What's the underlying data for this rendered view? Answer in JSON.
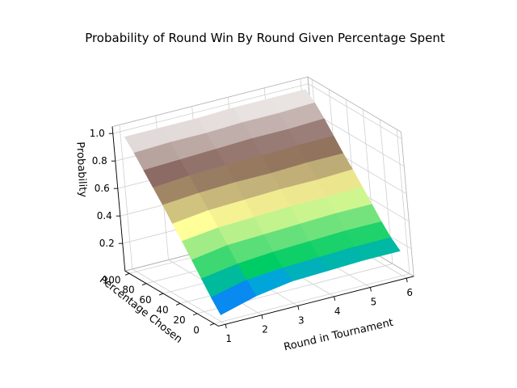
{
  "chart_data": {
    "type": "surface3d",
    "title": "Probability of Round Win By Round Given Percentage Spent",
    "xlabel": "Round in Tournament",
    "ylabel": "Percentage Chosen",
    "zlabel": "Probability",
    "x_ticks": [
      "1",
      "2",
      "3",
      "4",
      "5",
      "6"
    ],
    "y_ticks": [
      "0",
      "20",
      "40",
      "60",
      "80",
      "100"
    ],
    "z_ticks": [
      "0.2",
      "0.4",
      "0.6",
      "0.8",
      "1.0"
    ],
    "xlim": [
      1,
      6
    ],
    "ylim": [
      0,
      100
    ],
    "zlim": [
      0,
      1
    ],
    "grid": true,
    "colormap": "terrain",
    "rounds": [
      1,
      2,
      3,
      4,
      5,
      6
    ],
    "percent": [
      0,
      10,
      20,
      30,
      40,
      50,
      60,
      70,
      80,
      90,
      100
    ],
    "z": [
      [
        0.05,
        0.12,
        0.16,
        0.17,
        0.18,
        0.18
      ],
      [
        0.14,
        0.2,
        0.22,
        0.23,
        0.24,
        0.24
      ],
      [
        0.24,
        0.28,
        0.3,
        0.31,
        0.32,
        0.32
      ],
      [
        0.34,
        0.38,
        0.39,
        0.4,
        0.41,
        0.41
      ],
      [
        0.44,
        0.47,
        0.48,
        0.49,
        0.49,
        0.5
      ],
      [
        0.53,
        0.56,
        0.57,
        0.58,
        0.58,
        0.59
      ],
      [
        0.63,
        0.65,
        0.66,
        0.66,
        0.67,
        0.67
      ],
      [
        0.72,
        0.74,
        0.75,
        0.75,
        0.76,
        0.76
      ],
      [
        0.81,
        0.82,
        0.83,
        0.84,
        0.84,
        0.85
      ],
      [
        0.9,
        0.91,
        0.91,
        0.92,
        0.92,
        0.93
      ],
      [
        0.98,
        0.98,
        0.98,
        0.99,
        0.99,
        0.99
      ]
    ]
  }
}
